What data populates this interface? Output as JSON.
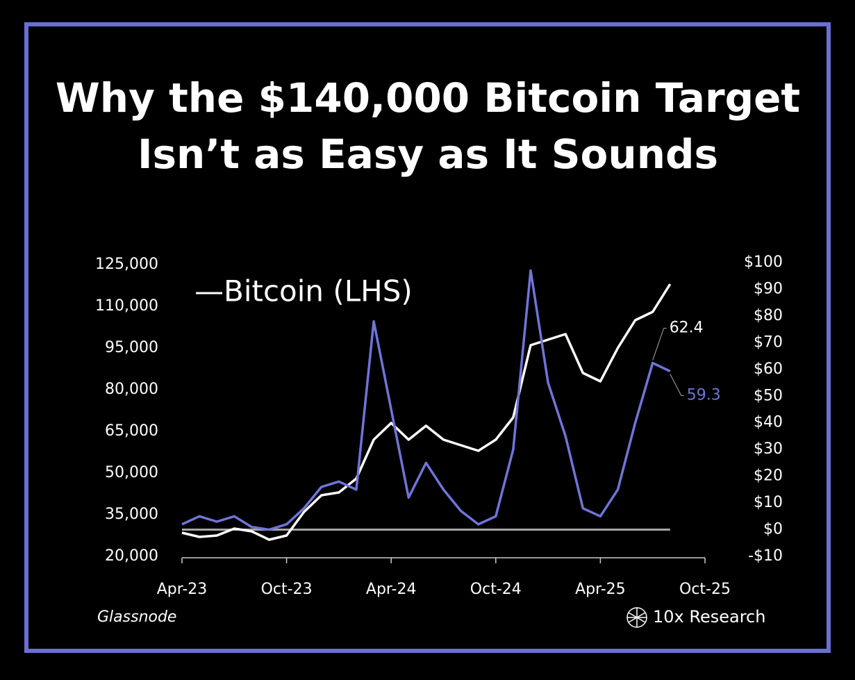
{
  "chart_data": {
    "type": "line",
    "title": "Why the $140,000 Bitcoin Target",
    "subtitle": "Isn’t as Easy as It Sounds",
    "legend": "—Bitcoin (LHS)",
    "source": "Glassnode",
    "brand": "10x Research",
    "x": [
      "2023-04",
      "2023-05",
      "2023-06",
      "2023-07",
      "2023-08",
      "2023-09",
      "2023-10",
      "2023-11",
      "2023-12",
      "2024-01",
      "2024-02",
      "2024-03",
      "2024-04",
      "2024-05",
      "2024-06",
      "2024-07",
      "2024-08",
      "2024-09",
      "2024-10",
      "2024-11",
      "2024-12",
      "2025-01",
      "2025-02",
      "2025-03",
      "2025-04",
      "2025-05",
      "2025-06",
      "2025-07",
      "2025-08"
    ],
    "series": [
      {
        "name": "Bitcoin (LHS)",
        "color": "#ffffff",
        "axis": "y",
        "values": [
          28500,
          27000,
          27500,
          30000,
          29000,
          26000,
          27500,
          36000,
          42000,
          43000,
          48000,
          62000,
          68000,
          62000,
          67000,
          62000,
          60000,
          58000,
          62000,
          70000,
          96000,
          98000,
          100000,
          86000,
          83000,
          95000,
          105000,
          108000,
          118000
        ]
      },
      {
        "color": "#7074d9",
        "axis": "y2",
        "values": [
          2,
          5,
          3,
          5,
          1,
          0,
          2,
          8,
          16,
          18,
          15,
          78,
          45,
          12,
          25,
          15,
          7,
          2,
          5,
          30,
          97,
          55,
          35,
          8,
          5,
          15,
          40,
          62.4,
          59.3
        ]
      }
    ],
    "annotations": [
      {
        "value": 62.4,
        "color": "#ffffff"
      },
      {
        "value": 59.3,
        "color": "#7074d9"
      }
    ],
    "hline": {
      "value": 0,
      "axis": "y2",
      "color": "#a6a6a6"
    },
    "ylim": [
      20000,
      125000
    ],
    "yticks": [
      {
        "value": 20000,
        "label": "20,000"
      },
      {
        "value": 35000,
        "label": "35,000"
      },
      {
        "value": 50000,
        "label": "50,000"
      },
      {
        "value": 65000,
        "label": "65,000"
      },
      {
        "value": 80000,
        "label": "80,000"
      },
      {
        "value": 95000,
        "label": "95,000"
      },
      {
        "value": 110000,
        "label": "110,000"
      },
      {
        "value": 125000,
        "label": "125,000"
      }
    ],
    "y2lim": [
      -10,
      100
    ],
    "y2ticks": [
      {
        "value": -10,
        "label": "-$10"
      },
      {
        "value": 0,
        "label": "$0"
      },
      {
        "value": 10,
        "label": "$10"
      },
      {
        "value": 20,
        "label": "$20"
      },
      {
        "value": 30,
        "label": "$30"
      },
      {
        "value": 40,
        "label": "$40"
      },
      {
        "value": 50,
        "label": "$50"
      },
      {
        "value": 60,
        "label": "$60"
      },
      {
        "value": 70,
        "label": "$70"
      },
      {
        "value": 80,
        "label": "$80"
      },
      {
        "value": 90,
        "label": "$90"
      },
      {
        "value": 100,
        "label": "$100"
      }
    ],
    "xlim": [
      "2023-04",
      "2025-10"
    ],
    "xticks": [
      {
        "value": "2023-04",
        "label": "Apr-23"
      },
      {
        "value": "2023-10",
        "label": "Oct-23"
      },
      {
        "value": "2024-04",
        "label": "Apr-24"
      },
      {
        "value": "2024-10",
        "label": "Oct-24"
      },
      {
        "value": "2025-04",
        "label": "Apr-25"
      },
      {
        "value": "2025-10",
        "label": "Oct-25"
      }
    ],
    "border_color": "#6b6fd4"
  }
}
